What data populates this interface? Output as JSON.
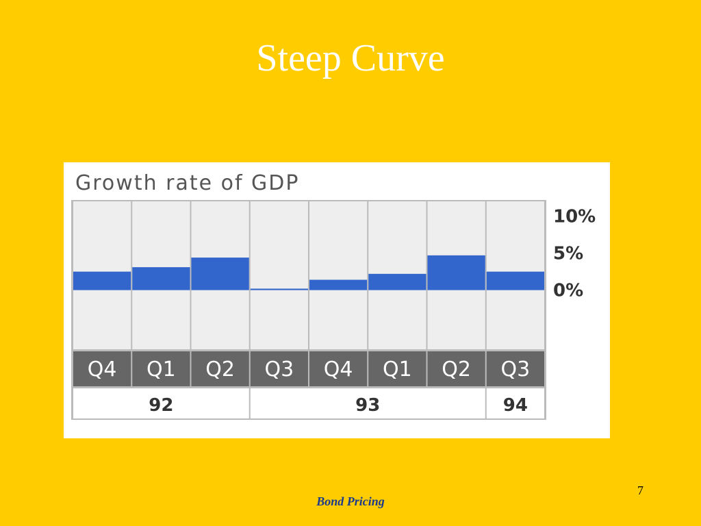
{
  "slide": {
    "title": "Steep Curve",
    "footer": "Bond Pricing",
    "page_number": "7"
  },
  "colors": {
    "background": "#FFCC00",
    "bar": "#3366CC",
    "plot_background": "#EEEEEE",
    "quarter_band": "#666666",
    "grid": "#BBBBBB"
  },
  "chart_data": {
    "type": "bar",
    "title": "Growth rate of GDP",
    "categories": [
      "Q4",
      "Q1",
      "Q2",
      "Q3",
      "Q4",
      "Q1",
      "Q2",
      "Q3"
    ],
    "years": [
      {
        "label": "92",
        "span": 3
      },
      {
        "label": "93",
        "span": 4
      },
      {
        "label": "94",
        "span": 1
      }
    ],
    "values": [
      2.5,
      3.1,
      4.4,
      0.2,
      1.4,
      2.2,
      4.7,
      2.5
    ],
    "ylim": [
      -8,
      12
    ],
    "yticks": [
      {
        "value": 10,
        "label": "10%"
      },
      {
        "value": 5,
        "label": "5%"
      },
      {
        "value": 0,
        "label": "0%"
      }
    ],
    "grid": "vertical",
    "legend": "none"
  }
}
